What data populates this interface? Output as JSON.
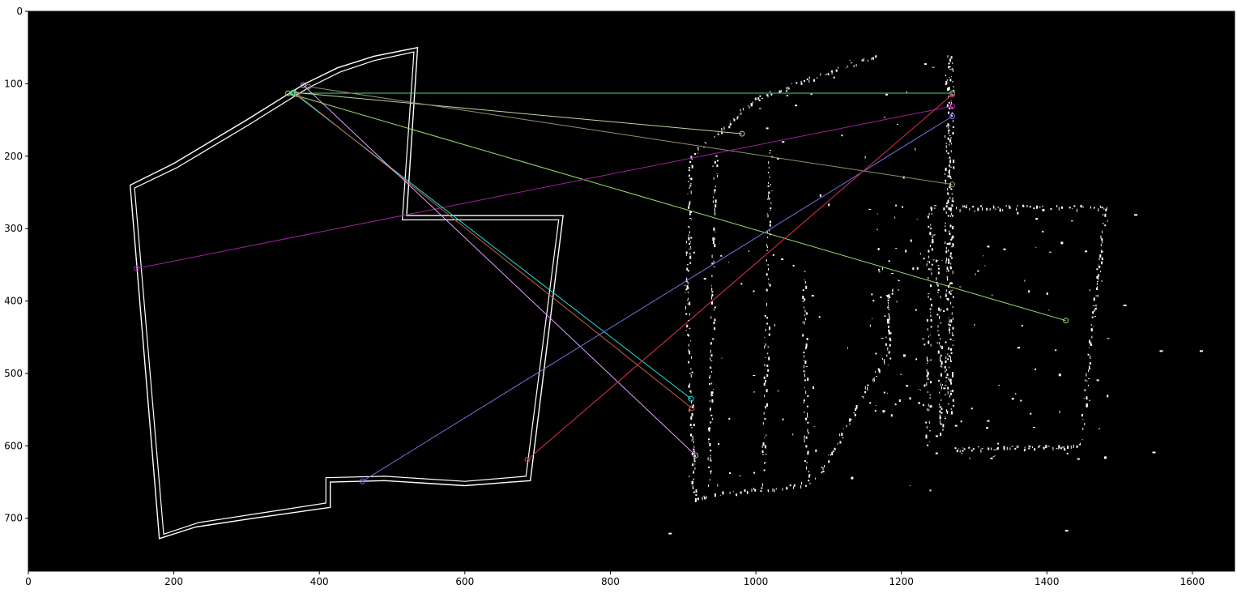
{
  "chart_data": {
    "type": "image",
    "title": "",
    "xlabel": "",
    "ylabel": "",
    "xlim": [
      0,
      1658
    ],
    "ylim": [
      773,
      0
    ],
    "y_inverted": true,
    "x_ticks": [
      "0",
      "200",
      "400",
      "600",
      "800",
      "1000",
      "1200",
      "1400",
      "1600"
    ],
    "x_tick_values": [
      0,
      200,
      400,
      600,
      800,
      1000,
      1200,
      1400,
      1600
    ],
    "y_ticks": [
      "0",
      "100",
      "200",
      "300",
      "400",
      "500",
      "600",
      "700"
    ],
    "y_tick_values": [
      0,
      100,
      200,
      300,
      400,
      500,
      600,
      700
    ],
    "background_color": "#000000",
    "edge_color": "#ffffff",
    "left_shape_outer": [
      [
        535,
        50
      ],
      [
        475,
        62
      ],
      [
        425,
        78
      ],
      [
        380,
        100
      ],
      [
        340,
        125
      ],
      [
        300,
        150
      ],
      [
        250,
        180
      ],
      [
        200,
        210
      ],
      [
        140,
        240
      ],
      [
        180,
        728
      ],
      [
        230,
        712
      ],
      [
        310,
        700
      ],
      [
        415,
        685
      ],
      [
        415,
        650
      ],
      [
        490,
        648
      ],
      [
        600,
        655
      ],
      [
        690,
        648
      ],
      [
        735,
        282
      ],
      [
        520,
        282
      ]
    ],
    "left_shape_inner": [
      [
        530,
        56
      ],
      [
        475,
        68
      ],
      [
        428,
        84
      ],
      [
        384,
        106
      ],
      [
        344,
        131
      ],
      [
        304,
        156
      ],
      [
        254,
        186
      ],
      [
        204,
        216
      ],
      [
        146,
        244
      ],
      [
        186,
        722
      ],
      [
        234,
        706
      ],
      [
        312,
        694
      ],
      [
        409,
        679
      ],
      [
        409,
        644
      ],
      [
        490,
        642
      ],
      [
        600,
        649
      ],
      [
        684,
        642
      ],
      [
        729,
        288
      ],
      [
        514,
        288
      ]
    ],
    "right_scatter_regions": [
      {
        "x": [
          905,
          1270
        ],
        "y": [
          55,
          680
        ]
      },
      {
        "x": [
          1240,
          1485
        ],
        "y": [
          270,
          620
        ]
      },
      {
        "x": [
          1155,
          1270
        ],
        "y": [
          260,
          560
        ]
      }
    ],
    "matches": [
      {
        "x1": 363,
        "y1": 113,
        "x2": 1270,
        "y2": 113,
        "color": "#3ddc84"
      },
      {
        "x1": 365,
        "y1": 112,
        "x2": 981,
        "y2": 169,
        "color": "#b8d8a0"
      },
      {
        "x1": 385,
        "y1": 104,
        "x2": 1270,
        "y2": 239,
        "color": "#909070"
      },
      {
        "x1": 357,
        "y1": 113,
        "x2": 1426,
        "y2": 427,
        "color": "#98e070"
      },
      {
        "x1": 149,
        "y1": 355,
        "x2": 1270,
        "y2": 131,
        "color": "#a020a0"
      },
      {
        "x1": 365,
        "y1": 113,
        "x2": 911,
        "y2": 535,
        "color": "#20e0e0"
      },
      {
        "x1": 370,
        "y1": 115,
        "x2": 912,
        "y2": 548,
        "color": "#c06040"
      },
      {
        "x1": 378,
        "y1": 102,
        "x2": 917,
        "y2": 613,
        "color": "#e0a0ff"
      },
      {
        "x1": 459,
        "y1": 649,
        "x2": 1270,
        "y2": 145,
        "color": "#7070e0"
      },
      {
        "x1": 686,
        "y1": 619,
        "x2": 1270,
        "y2": 115,
        "color": "#e03050"
      }
    ]
  }
}
